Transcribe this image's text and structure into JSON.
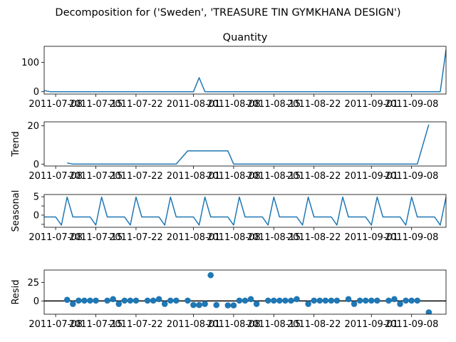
{
  "figure": {
    "suptitle": "Decomposition for ('Sweden', 'TREASURE TIN GYMKHANA DESIGN')",
    "line_color": "#1f77b4"
  },
  "chart_data": [
    {
      "type": "line",
      "title": "Quantity",
      "ylabel": "",
      "xlim": [
        "2011-07-06",
        "2011-09-14"
      ],
      "ylim": [
        -8,
        155
      ],
      "yticks": [
        0,
        100
      ],
      "xticks": [
        "2011-07-08",
        "2011-07-15",
        "2011-07-22",
        "2011-08-01",
        "2011-08-08",
        "2011-08-15",
        "2011-08-22",
        "2011-09-01",
        "2011-09-08"
      ],
      "series": [
        {
          "x": [
            "2011-07-06",
            "2011-07-07",
            "2011-07-08",
            "2011-07-10",
            "2011-07-11",
            "2011-07-12",
            "2011-07-13",
            "2011-07-14",
            "2011-07-15",
            "2011-07-17",
            "2011-07-18",
            "2011-07-19",
            "2011-07-20",
            "2011-07-21",
            "2011-07-22",
            "2011-07-24",
            "2011-07-25",
            "2011-07-26",
            "2011-07-27",
            "2011-07-28",
            "2011-07-29",
            "2011-07-31",
            "2011-08-01",
            "2011-08-02",
            "2011-08-03",
            "2011-08-04",
            "2011-08-05",
            "2011-08-07",
            "2011-08-08",
            "2011-08-09",
            "2011-08-10",
            "2011-08-11",
            "2011-08-12",
            "2011-08-14",
            "2011-08-15",
            "2011-08-16",
            "2011-08-17",
            "2011-08-18",
            "2011-08-19",
            "2011-08-21",
            "2011-08-22",
            "2011-08-23",
            "2011-08-24",
            "2011-08-25",
            "2011-08-26",
            "2011-08-28",
            "2011-08-29",
            "2011-08-30",
            "2011-08-31",
            "2011-09-01",
            "2011-09-02",
            "2011-09-04",
            "2011-09-05",
            "2011-09-06",
            "2011-09-07",
            "2011-09-08",
            "2011-09-09",
            "2011-09-11",
            "2011-09-12",
            "2011-09-13",
            "2011-09-14"
          ],
          "y": [
            4,
            0,
            0,
            0,
            0,
            0,
            0,
            0,
            0,
            0,
            0,
            0,
            0,
            0,
            0,
            0,
            0,
            0,
            0,
            0,
            0,
            0,
            0,
            48,
            0,
            0,
            0,
            0,
            0,
            0,
            0,
            0,
            0,
            0,
            0,
            0,
            0,
            0,
            0,
            0,
            0,
            0,
            0,
            0,
            0,
            0,
            0,
            0,
            0,
            0,
            0,
            0,
            0,
            0,
            0,
            0,
            0,
            0,
            0,
            0,
            144
          ]
        }
      ]
    },
    {
      "type": "line",
      "title": "",
      "ylabel": "Trend",
      "xlim": [
        "2011-07-06",
        "2011-09-14"
      ],
      "ylim": [
        -1,
        22
      ],
      "yticks": [
        0,
        20
      ],
      "xticks": [
        "2011-07-08",
        "2011-07-15",
        "2011-07-22",
        "2011-08-01",
        "2011-08-08",
        "2011-08-15",
        "2011-08-22",
        "2011-09-01",
        "2011-09-08"
      ],
      "series": [
        {
          "x": [
            "2011-07-10",
            "2011-07-11",
            "2011-07-12",
            "2011-07-13",
            "2011-07-14",
            "2011-07-15",
            "2011-07-17",
            "2011-07-18",
            "2011-07-19",
            "2011-07-20",
            "2011-07-21",
            "2011-07-22",
            "2011-07-24",
            "2011-07-25",
            "2011-07-26",
            "2011-07-27",
            "2011-07-28",
            "2011-07-29",
            "2011-07-31",
            "2011-08-01",
            "2011-08-02",
            "2011-08-03",
            "2011-08-04",
            "2011-08-05",
            "2011-08-07",
            "2011-08-08",
            "2011-08-09",
            "2011-08-10",
            "2011-08-11",
            "2011-08-12",
            "2011-08-14",
            "2011-08-15",
            "2011-08-16",
            "2011-08-17",
            "2011-08-18",
            "2011-08-19",
            "2011-08-21",
            "2011-08-22",
            "2011-08-23",
            "2011-08-24",
            "2011-08-25",
            "2011-08-26",
            "2011-08-28",
            "2011-08-29",
            "2011-08-30",
            "2011-08-31",
            "2011-09-01",
            "2011-09-02",
            "2011-09-04",
            "2011-09-05",
            "2011-09-06",
            "2011-09-07",
            "2011-09-08",
            "2011-09-09",
            "2011-09-11"
          ],
          "y": [
            0.6,
            0,
            0,
            0,
            0,
            0,
            0,
            0,
            0,
            0,
            0,
            0,
            0,
            0,
            0,
            0,
            0,
            0,
            6.9,
            6.9,
            6.9,
            6.9,
            6.9,
            6.9,
            6.9,
            0,
            0,
            0,
            0,
            0,
            0,
            0,
            0,
            0,
            0,
            0,
            0,
            0,
            0,
            0,
            0,
            0,
            0,
            0,
            0,
            0,
            0,
            0,
            0,
            0,
            0,
            0,
            0,
            0,
            20.6
          ]
        }
      ]
    },
    {
      "type": "line",
      "title": "",
      "ylabel": "Seasonal",
      "xlim": [
        "2011-07-06",
        "2011-09-14"
      ],
      "ylim": [
        -3.3,
        5.6
      ],
      "yticks": [
        -2.5,
        0,
        2.5,
        5
      ],
      "yticklabels": [
        "",
        "0",
        "",
        "5"
      ],
      "xticks": [
        "2011-07-08",
        "2011-07-15",
        "2011-07-22",
        "2011-08-01",
        "2011-08-08",
        "2011-08-15",
        "2011-08-22",
        "2011-09-01",
        "2011-09-08"
      ],
      "series": [
        {
          "pattern": [
            -0.5,
            -0.5,
            -0.5,
            -2.7,
            4.9,
            -0.5
          ],
          "x_start": "2011-07-06",
          "x_end": "2011-09-14"
        }
      ]
    },
    {
      "type": "scatter",
      "title": "",
      "ylabel": "Resid",
      "xlim": [
        "2011-07-06",
        "2011-09-14"
      ],
      "ylim": [
        -18,
        42
      ],
      "yticks": [
        0,
        25
      ],
      "baseline": 0,
      "xticks": [
        "2011-07-08",
        "2011-07-15",
        "2011-07-22",
        "2011-08-01",
        "2011-08-08",
        "2011-08-15",
        "2011-08-22",
        "2011-09-01",
        "2011-09-08"
      ],
      "series": [
        {
          "x": [
            "2011-07-10",
            "2011-07-11",
            "2011-07-12",
            "2011-07-13",
            "2011-07-14",
            "2011-07-15",
            "2011-07-17",
            "2011-07-18",
            "2011-07-19",
            "2011-07-20",
            "2011-07-21",
            "2011-07-22",
            "2011-07-24",
            "2011-07-25",
            "2011-07-26",
            "2011-07-27",
            "2011-07-28",
            "2011-07-29",
            "2011-07-31",
            "2011-08-01",
            "2011-08-02",
            "2011-08-03",
            "2011-08-04",
            "2011-08-05",
            "2011-08-07",
            "2011-08-08",
            "2011-08-09",
            "2011-08-10",
            "2011-08-11",
            "2011-08-12",
            "2011-08-14",
            "2011-08-15",
            "2011-08-16",
            "2011-08-17",
            "2011-08-18",
            "2011-08-19",
            "2011-08-21",
            "2011-08-22",
            "2011-08-23",
            "2011-08-24",
            "2011-08-25",
            "2011-08-26",
            "2011-08-28",
            "2011-08-29",
            "2011-08-30",
            "2011-08-31",
            "2011-09-01",
            "2011-09-02",
            "2011-09-04",
            "2011-09-05",
            "2011-09-06",
            "2011-09-07",
            "2011-09-08",
            "2011-09-09",
            "2011-09-11"
          ],
          "y": [
            1.5,
            -4,
            0.5,
            0.5,
            0.5,
            0.5,
            0.5,
            2.5,
            -4,
            0.5,
            0.5,
            0.5,
            0.5,
            0.5,
            2.5,
            -4,
            0.5,
            0.5,
            0.5,
            -5.5,
            -5.5,
            -4,
            35,
            -5.5,
            -6,
            -6,
            0.5,
            0.5,
            2.5,
            -4,
            0.5,
            0.5,
            0.5,
            0.5,
            0.5,
            2.5,
            -4,
            0.5,
            0.5,
            0.5,
            0.5,
            0.5,
            2.5,
            -4,
            0.5,
            0.5,
            0.5,
            0.5,
            0.5,
            2.5,
            -4,
            0.5,
            0.5,
            0.5,
            -15.5
          ]
        }
      ]
    }
  ]
}
